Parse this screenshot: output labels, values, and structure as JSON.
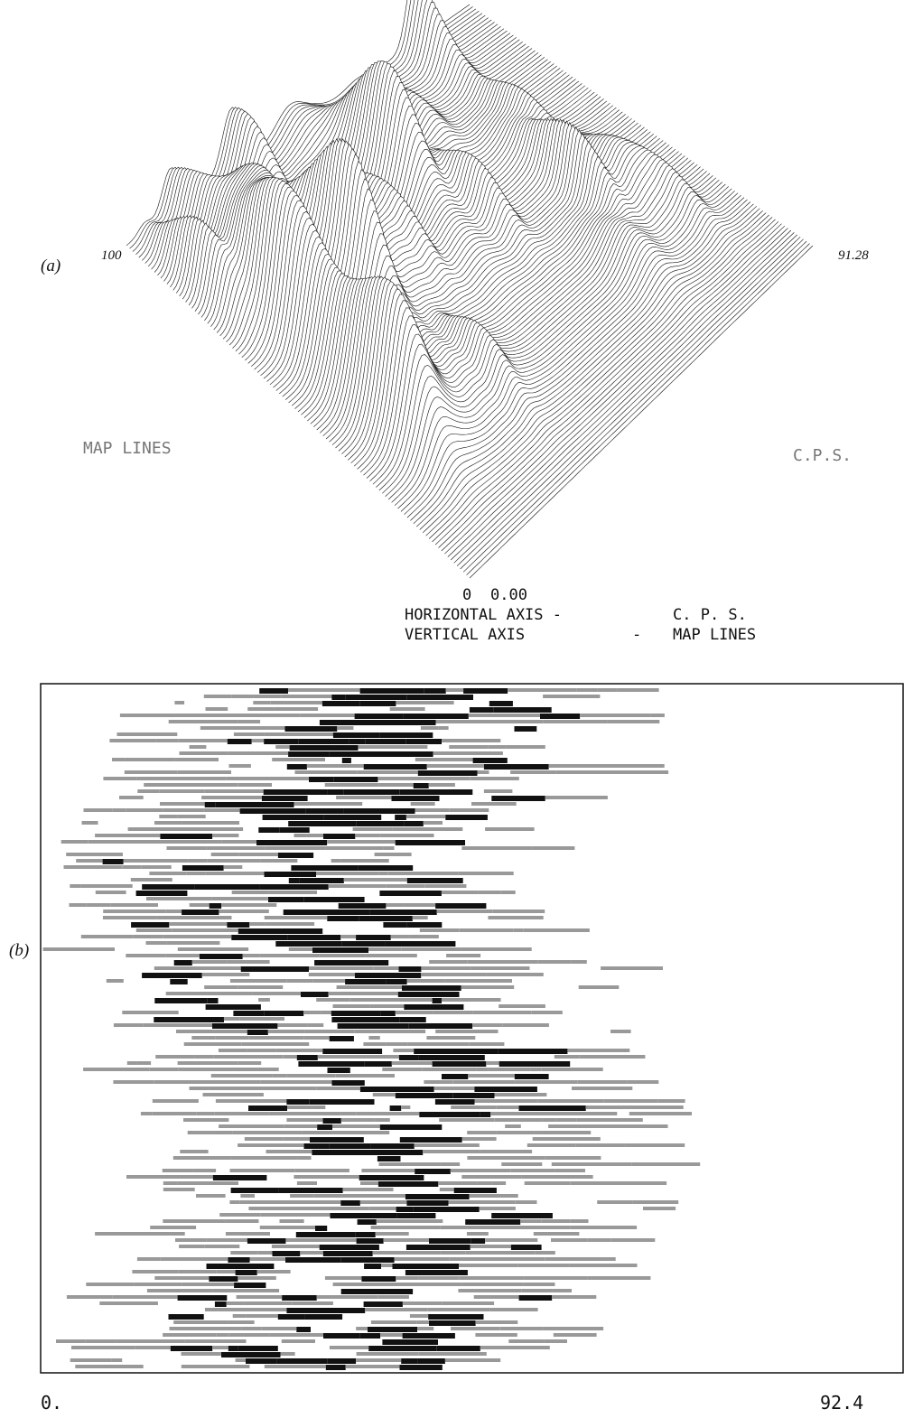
{
  "panel_a": {
    "label": "(a)",
    "left_corner": "100",
    "right_corner": "91.28",
    "left_axis": "MAP LINES",
    "right_axis": "C.P.S.",
    "origin_left": "0",
    "origin_right": "0.00",
    "legend": [
      [
        "HORIZONTAL AXIS -",
        "C. P. S."
      ],
      [
        "VERTICAL AXIS",
        "-",
        "MAP LINES"
      ]
    ]
  },
  "panel_b": {
    "label": "(b)",
    "x_start": "0.",
    "x_end": "92.4"
  }
}
